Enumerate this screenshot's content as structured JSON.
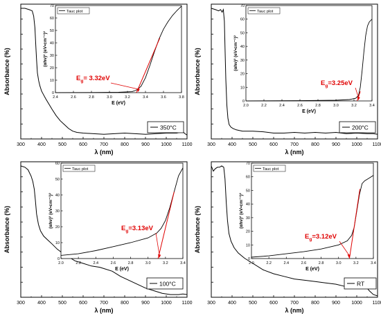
{
  "chart_data": [
    {
      "type": "line",
      "sample_label": "350°C",
      "main": {
        "xlabel": "λ (nm)",
        "ylabel": "Absorbance (%)",
        "xlim": [
          300,
          1100
        ],
        "xticks": [
          300,
          400,
          500,
          600,
          700,
          800,
          900,
          1000,
          1100
        ],
        "y_ticks_labeled": false,
        "series": [
          {
            "x": [
              300,
              320,
              340,
              355,
              362,
              368,
              372,
              376,
              380,
              386,
              392,
              400,
              410,
              420,
              435,
              450,
              470,
              490,
              510,
              530,
              550,
              570,
              600,
              650,
              700,
              750,
              800,
              850,
              900,
              950,
              1000,
              1050,
              1080,
              1090,
              1100
            ],
            "y": [
              100,
              100,
              99,
              98,
              94,
              85,
              72,
              60,
              50,
              44,
              40,
              36,
              33,
              30,
              26,
              22,
              17,
              13,
              10,
              7,
              5,
              4,
              3.5,
              3,
              2.5,
              3,
              3.5,
              3,
              2.5,
              3,
              3.5,
              3.5,
              4.5,
              3,
              2
            ]
          }
        ]
      },
      "inset": {
        "legend": "Tauc plot",
        "xlabel": "E (eV)",
        "ylabel": "(αhν)² (eV•cm⁻¹)²",
        "xlim": [
          2.4,
          3.8
        ],
        "ylim": [
          0,
          70
        ],
        "xticks": [
          2.4,
          2.6,
          2.8,
          3.0,
          3.2,
          3.4,
          3.6,
          3.8
        ],
        "yticks": [
          0,
          10,
          20,
          30,
          40,
          50,
          60,
          70
        ],
        "series": [
          {
            "x": [
              2.4,
              2.8,
              3.1,
              3.25,
              3.3,
              3.35,
              3.4,
              3.45,
              3.5,
              3.55,
              3.6,
              3.65,
              3.7,
              3.75,
              3.8
            ],
            "y": [
              0,
              0.1,
              0.3,
              0.8,
              2,
              5,
              12,
              22,
              33,
              43,
              51,
              57,
              62,
              66,
              69.5
            ]
          }
        ],
        "fit_line": {
          "x": [
            3.3,
            3.56
          ],
          "y": [
            0,
            44
          ]
        },
        "band_gap_label": "E",
        "band_gap_subscript": "g",
        "band_gap_value": "= 3.32eV",
        "band_gap_eV": 3.32
      }
    },
    {
      "type": "line",
      "sample_label": "200°C",
      "main": {
        "xlabel": "λ (nm)",
        "ylabel": "Absorbance (%)",
        "xlim": [
          300,
          1100
        ],
        "xticks": [
          300,
          400,
          500,
          600,
          700,
          800,
          900,
          1000,
          1100
        ],
        "y_ticks_labeled": false,
        "series": [
          {
            "x": [
              300,
              320,
              335,
              345,
              352,
              358,
              363,
              366,
              370,
              375,
              380,
              386,
              395,
              405,
              420,
              450,
              500,
              550,
              600,
              650,
              700,
              750,
              800,
              850,
              900,
              950,
              1000,
              1050,
              1080,
              1100
            ],
            "y": [
              100,
              99,
              98,
              99,
              97,
              99,
              90,
              70,
              45,
              25,
              15,
              10,
              8,
              7,
              6,
              5,
              5,
              4.5,
              3.5,
              3.5,
              4,
              3.5,
              4,
              3.5,
              4,
              3,
              3.5,
              3,
              3,
              2.5
            ]
          }
        ]
      },
      "inset": {
        "legend": "Tauc plot",
        "xlabel": "E (eV)",
        "ylabel": "(αhν)² (eV•cm⁻¹)²",
        "xlim": [
          2.0,
          3.4
        ],
        "ylim": [
          0,
          70
        ],
        "xticks": [
          2.0,
          2.2,
          2.4,
          2.6,
          2.8,
          3.0,
          3.2,
          3.4
        ],
        "yticks": [
          0,
          10,
          20,
          30,
          40,
          50,
          60,
          70
        ],
        "series": [
          {
            "x": [
              2.0,
              2.6,
              3.0,
              3.15,
              3.22,
              3.25,
              3.27,
              3.29,
              3.31,
              3.33,
              3.35,
              3.37,
              3.4
            ],
            "y": [
              0,
              0.2,
              0.5,
              1,
              2,
              4,
              10,
              22,
              36,
              48,
              55,
              58,
              60
            ]
          }
        ],
        "fit_line": {
          "x": [
            3.235,
            3.27
          ],
          "y": [
            0,
            7
          ]
        },
        "band_gap_label": "E",
        "band_gap_subscript": "g",
        "band_gap_value": "=3.25eV",
        "band_gap_eV": 3.25
      }
    },
    {
      "type": "line",
      "sample_label": "100°C",
      "main": {
        "xlabel": "λ (nm)",
        "ylabel": "Absorbance (%)",
        "xlim": [
          300,
          1100
        ],
        "xticks": [
          300,
          400,
          500,
          600,
          700,
          800,
          900,
          1000,
          1100
        ],
        "y_ticks_labeled": false,
        "series": [
          {
            "x": [
              300,
              320,
              335,
              350,
              358,
              365,
              370,
              376,
              385,
              395,
              410,
              430,
              450,
              475,
              500,
              530,
              560,
              600,
              640,
              680,
              700,
              740,
              780,
              820,
              860,
              900,
              940,
              980,
              1020,
              1060,
              1080,
              1100
            ],
            "y": [
              100,
              99,
              97,
              92,
              88,
              82,
              74,
              63,
              55,
              50,
              46,
              43,
              40,
              36,
              33,
              30,
              27,
              25,
              23,
              22,
              21,
              19,
              15,
              12,
              9,
              6,
              4,
              2,
              1,
              1,
              1.5,
              1
            ]
          }
        ]
      },
      "inset": {
        "legend": "Tauc plot",
        "xlabel": "E (eV)",
        "ylabel": "(αhν)² (eV•cm⁻¹)²",
        "xlim": [
          2.0,
          3.4
        ],
        "ylim": [
          0,
          60
        ],
        "xticks": [
          2.0,
          2.2,
          2.4,
          2.6,
          2.8,
          3.0,
          3.2,
          3.4
        ],
        "yticks": [
          0,
          10,
          20,
          30,
          40,
          50,
          60
        ],
        "series": [
          {
            "x": [
              2.0,
              2.2,
              2.4,
              2.6,
              2.8,
              3.0,
              3.1,
              3.15,
              3.2,
              3.25,
              3.3,
              3.35,
              3.4
            ],
            "y": [
              2,
              3,
              5,
              7.5,
              10,
              13,
              16,
              19,
              24,
              32,
              42,
              52,
              57
            ]
          }
        ],
        "fit_line": {
          "x": [
            3.115,
            3.3
          ],
          "y": [
            0,
            42
          ]
        },
        "band_gap_label": "E",
        "band_gap_subscript": "g",
        "band_gap_value": "=3.13eV",
        "band_gap_eV": 3.13
      }
    },
    {
      "type": "line",
      "sample_label": "RT",
      "main": {
        "xlabel": "λ (nm)",
        "ylabel": "Absorbance (%)",
        "xlim": [
          300,
          1100
        ],
        "xticks": [
          300,
          400,
          500,
          600,
          700,
          800,
          900,
          1000,
          1100
        ],
        "y_ticks_labeled": false,
        "series": [
          {
            "x": [
              300,
              310,
              320,
              330,
              340,
              350,
              360,
              366,
              372,
              378,
              385,
              395,
              410,
              430,
              460,
              500,
              550,
              600,
              650,
              700,
              750,
              800,
              850,
              900,
              950,
              1000,
              1040,
              1060,
              1080,
              1100
            ],
            "y": [
              100,
              96,
              98,
              99,
              99,
              100,
              99,
              90,
              72,
              58,
              48,
              42,
              37,
              33,
              29,
              25,
              20,
              17,
              15,
              13,
              12,
              11,
              10,
              9,
              7,
              6,
              8,
              4,
              1,
              0
            ]
          }
        ]
      },
      "inset": {
        "legend": "Tauc plot",
        "xlabel": "E (eV)",
        "ylabel": "(αhν)² (eV•cm⁻¹)²",
        "xlim": [
          2.0,
          3.4
        ],
        "ylim": [
          0,
          70
        ],
        "xticks": [
          2.0,
          2.2,
          2.4,
          2.6,
          2.8,
          3.0,
          3.2,
          3.4
        ],
        "yticks": [
          0,
          10,
          20,
          30,
          40,
          50,
          60,
          70
        ],
        "series": [
          {
            "x": [
              2.0,
              2.2,
              2.4,
              2.6,
              2.8,
              3.0,
              3.1,
              3.15,
              3.18,
              3.21,
              3.24,
              3.27,
              3.3,
              3.35,
              3.4
            ],
            "y": [
              1,
              2,
              3.5,
              5,
              7,
              10,
              13,
              17,
              23,
              35,
              47,
              55,
              57,
              59,
              61
            ]
          }
        ],
        "fit_line": {
          "x": [
            3.125,
            3.245
          ],
          "y": [
            0,
            51
          ]
        },
        "band_gap_label": "E",
        "band_gap_subscript": "g",
        "band_gap_value": "=3.12eV",
        "band_gap_eV": 3.12
      }
    }
  ]
}
